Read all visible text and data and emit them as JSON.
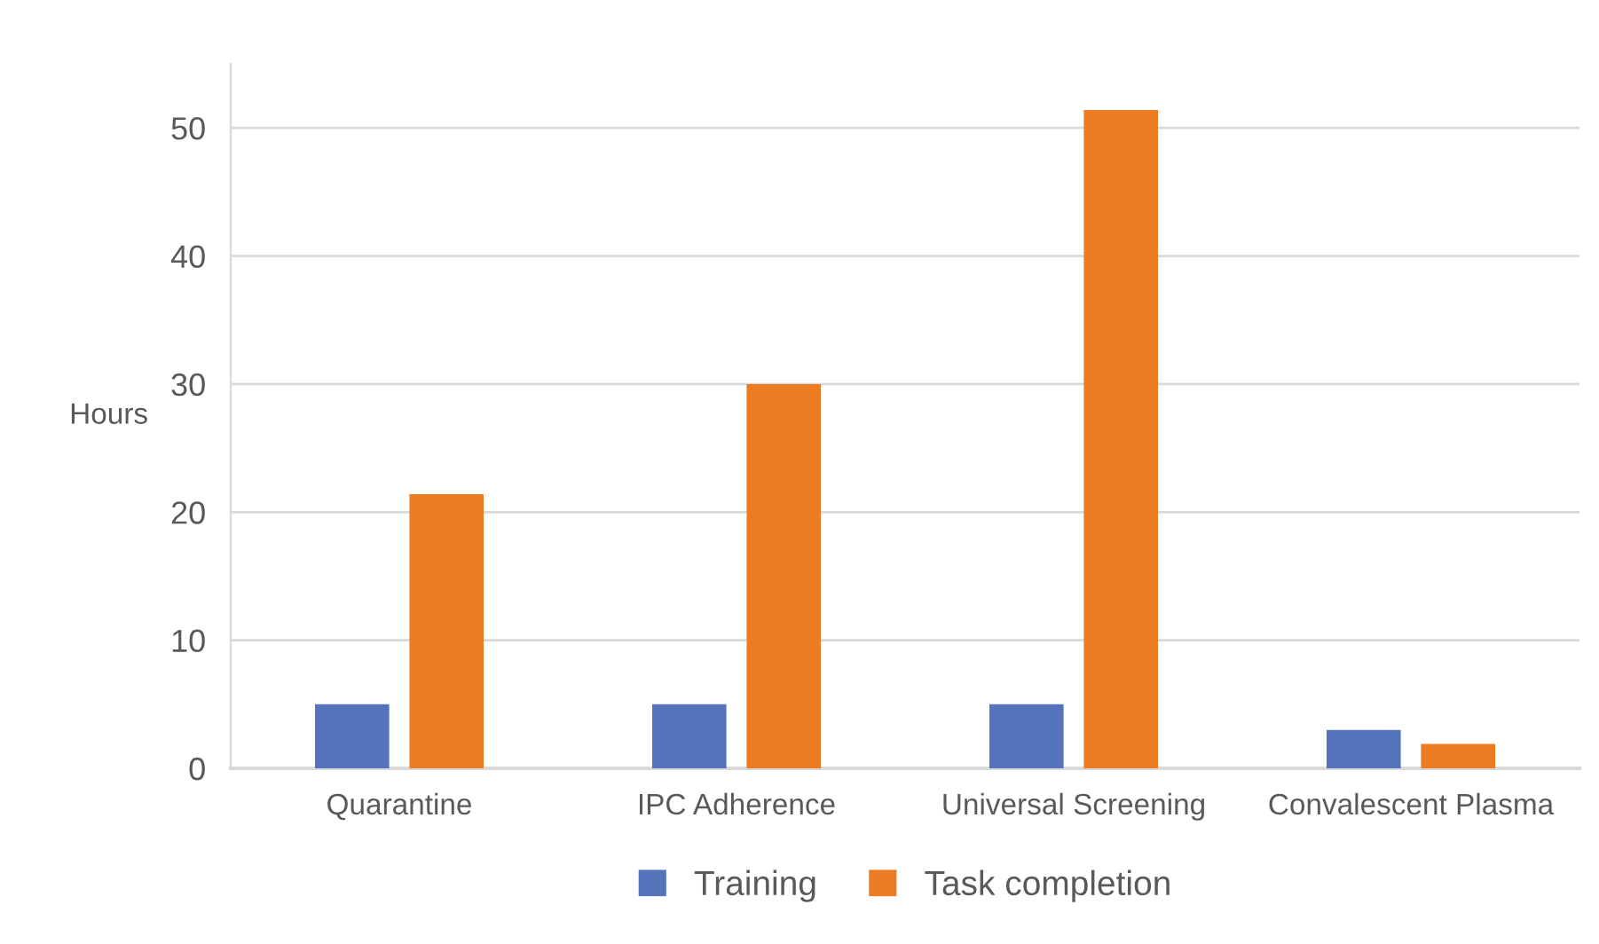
{
  "chart_data": {
    "type": "bar",
    "ylabel": "Hours",
    "categories": [
      "Quarantine",
      "IPC Adherence",
      "Universal Screening",
      "Convalescent Plasma"
    ],
    "series": [
      {
        "name": "Training",
        "color": "#5473bb",
        "values": [
          5,
          5,
          5,
          3
        ]
      },
      {
        "name": "Task completion",
        "color": "#ed7b22",
        "values": [
          21.4,
          30,
          51.4,
          1.9
        ]
      }
    ],
    "ylim": [
      0,
      55
    ],
    "yticks": [
      0,
      10,
      20,
      30,
      40,
      50
    ],
    "grid": "y",
    "legend": "bottom"
  }
}
